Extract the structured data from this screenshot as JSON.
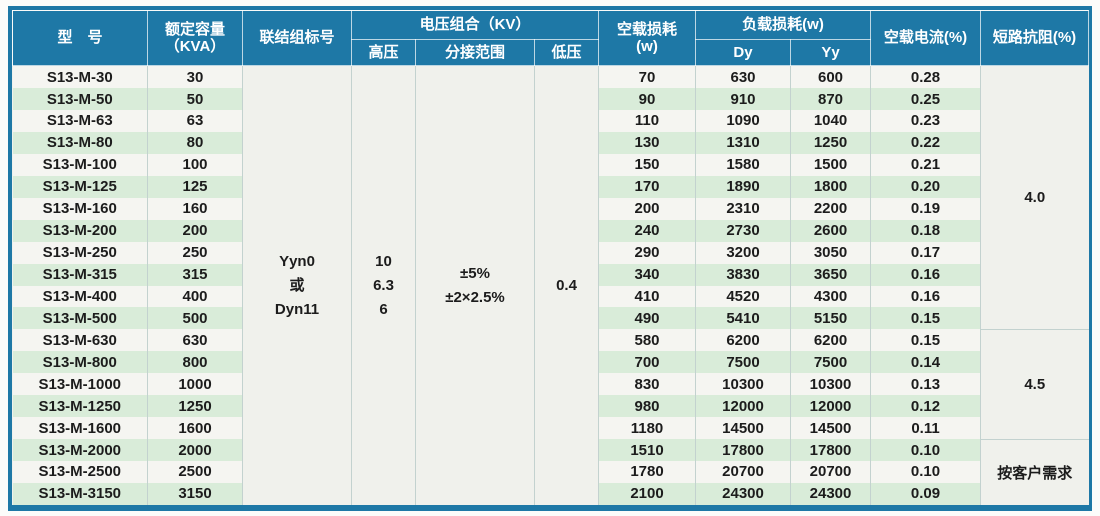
{
  "table": {
    "headers": {
      "model": "型　号",
      "capacity": "额定容量\n（KVA）",
      "connection_group": "联结组标号",
      "voltage_group": "电压组合（KV）",
      "hv": "高压",
      "tap_range": "分接范围",
      "lv": "低压",
      "no_load_loss": "空载损耗\n(w)",
      "load_loss": "负载损耗(w)",
      "dy": "Dy",
      "yy": "Yy",
      "no_load_current": "空载电流(%)",
      "impedance": "短路抗阻(%)"
    },
    "merged": {
      "connection_group": "Yyn0\n或\nDyn11",
      "hv": "10\n6.3\n6",
      "tap_range": "±5%\n±2×2.5%",
      "lv": "0.4"
    },
    "impedance_spans": [
      {
        "label": "4.0",
        "rows": 12
      },
      {
        "label": "4.5",
        "rows": 5
      },
      {
        "label": "按客户需求",
        "rows": 3
      }
    ],
    "rows": [
      {
        "model": "S13-M-30",
        "capacity": "30",
        "no_load_loss": "70",
        "dy": "630",
        "yy": "600",
        "no_load_current": "0.28"
      },
      {
        "model": "S13-M-50",
        "capacity": "50",
        "no_load_loss": "90",
        "dy": "910",
        "yy": "870",
        "no_load_current": "0.25"
      },
      {
        "model": "S13-M-63",
        "capacity": "63",
        "no_load_loss": "110",
        "dy": "1090",
        "yy": "1040",
        "no_load_current": "0.23"
      },
      {
        "model": "S13-M-80",
        "capacity": "80",
        "no_load_loss": "130",
        "dy": "1310",
        "yy": "1250",
        "no_load_current": "0.22"
      },
      {
        "model": "S13-M-100",
        "capacity": "100",
        "no_load_loss": "150",
        "dy": "1580",
        "yy": "1500",
        "no_load_current": "0.21"
      },
      {
        "model": "S13-M-125",
        "capacity": "125",
        "no_load_loss": "170",
        "dy": "1890",
        "yy": "1800",
        "no_load_current": "0.20"
      },
      {
        "model": "S13-M-160",
        "capacity": "160",
        "no_load_loss": "200",
        "dy": "2310",
        "yy": "2200",
        "no_load_current": "0.19"
      },
      {
        "model": "S13-M-200",
        "capacity": "200",
        "no_load_loss": "240",
        "dy": "2730",
        "yy": "2600",
        "no_load_current": "0.18"
      },
      {
        "model": "S13-M-250",
        "capacity": "250",
        "no_load_loss": "290",
        "dy": "3200",
        "yy": "3050",
        "no_load_current": "0.17"
      },
      {
        "model": "S13-M-315",
        "capacity": "315",
        "no_load_loss": "340",
        "dy": "3830",
        "yy": "3650",
        "no_load_current": "0.16"
      },
      {
        "model": "S13-M-400",
        "capacity": "400",
        "no_load_loss": "410",
        "dy": "4520",
        "yy": "4300",
        "no_load_current": "0.16"
      },
      {
        "model": "S13-M-500",
        "capacity": "500",
        "no_load_loss": "490",
        "dy": "5410",
        "yy": "5150",
        "no_load_current": "0.15"
      },
      {
        "model": "S13-M-630",
        "capacity": "630",
        "no_load_loss": "580",
        "dy": "6200",
        "yy": "6200",
        "no_load_current": "0.15"
      },
      {
        "model": "S13-M-800",
        "capacity": "800",
        "no_load_loss": "700",
        "dy": "7500",
        "yy": "7500",
        "no_load_current": "0.14"
      },
      {
        "model": "S13-M-1000",
        "capacity": "1000",
        "no_load_loss": "830",
        "dy": "10300",
        "yy": "10300",
        "no_load_current": "0.13"
      },
      {
        "model": "S13-M-1250",
        "capacity": "1250",
        "no_load_loss": "980",
        "dy": "12000",
        "yy": "12000",
        "no_load_current": "0.12"
      },
      {
        "model": "S13-M-1600",
        "capacity": "1600",
        "no_load_loss": "1180",
        "dy": "14500",
        "yy": "14500",
        "no_load_current": "0.11"
      },
      {
        "model": "S13-M-2000",
        "capacity": "2000",
        "no_load_loss": "1510",
        "dy": "17800",
        "yy": "17800",
        "no_load_current": "0.10"
      },
      {
        "model": "S13-M-2500",
        "capacity": "2500",
        "no_load_loss": "1780",
        "dy": "20700",
        "yy": "20700",
        "no_load_current": "0.10"
      },
      {
        "model": "S13-M-3150",
        "capacity": "3150",
        "no_load_loss": "2100",
        "dy": "24300",
        "yy": "24300",
        "no_load_current": "0.09"
      }
    ]
  },
  "colors": {
    "header_bg": "#1e78a6",
    "stripe_green": "#d9ecd9",
    "stripe_white": "#f5f5f1",
    "merged_bg": "#f0f1ec",
    "grid_line": "#c3d2cf",
    "frame": "#1e78a6",
    "header_text": "#ffffff",
    "body_text": "#1c1c1c"
  }
}
